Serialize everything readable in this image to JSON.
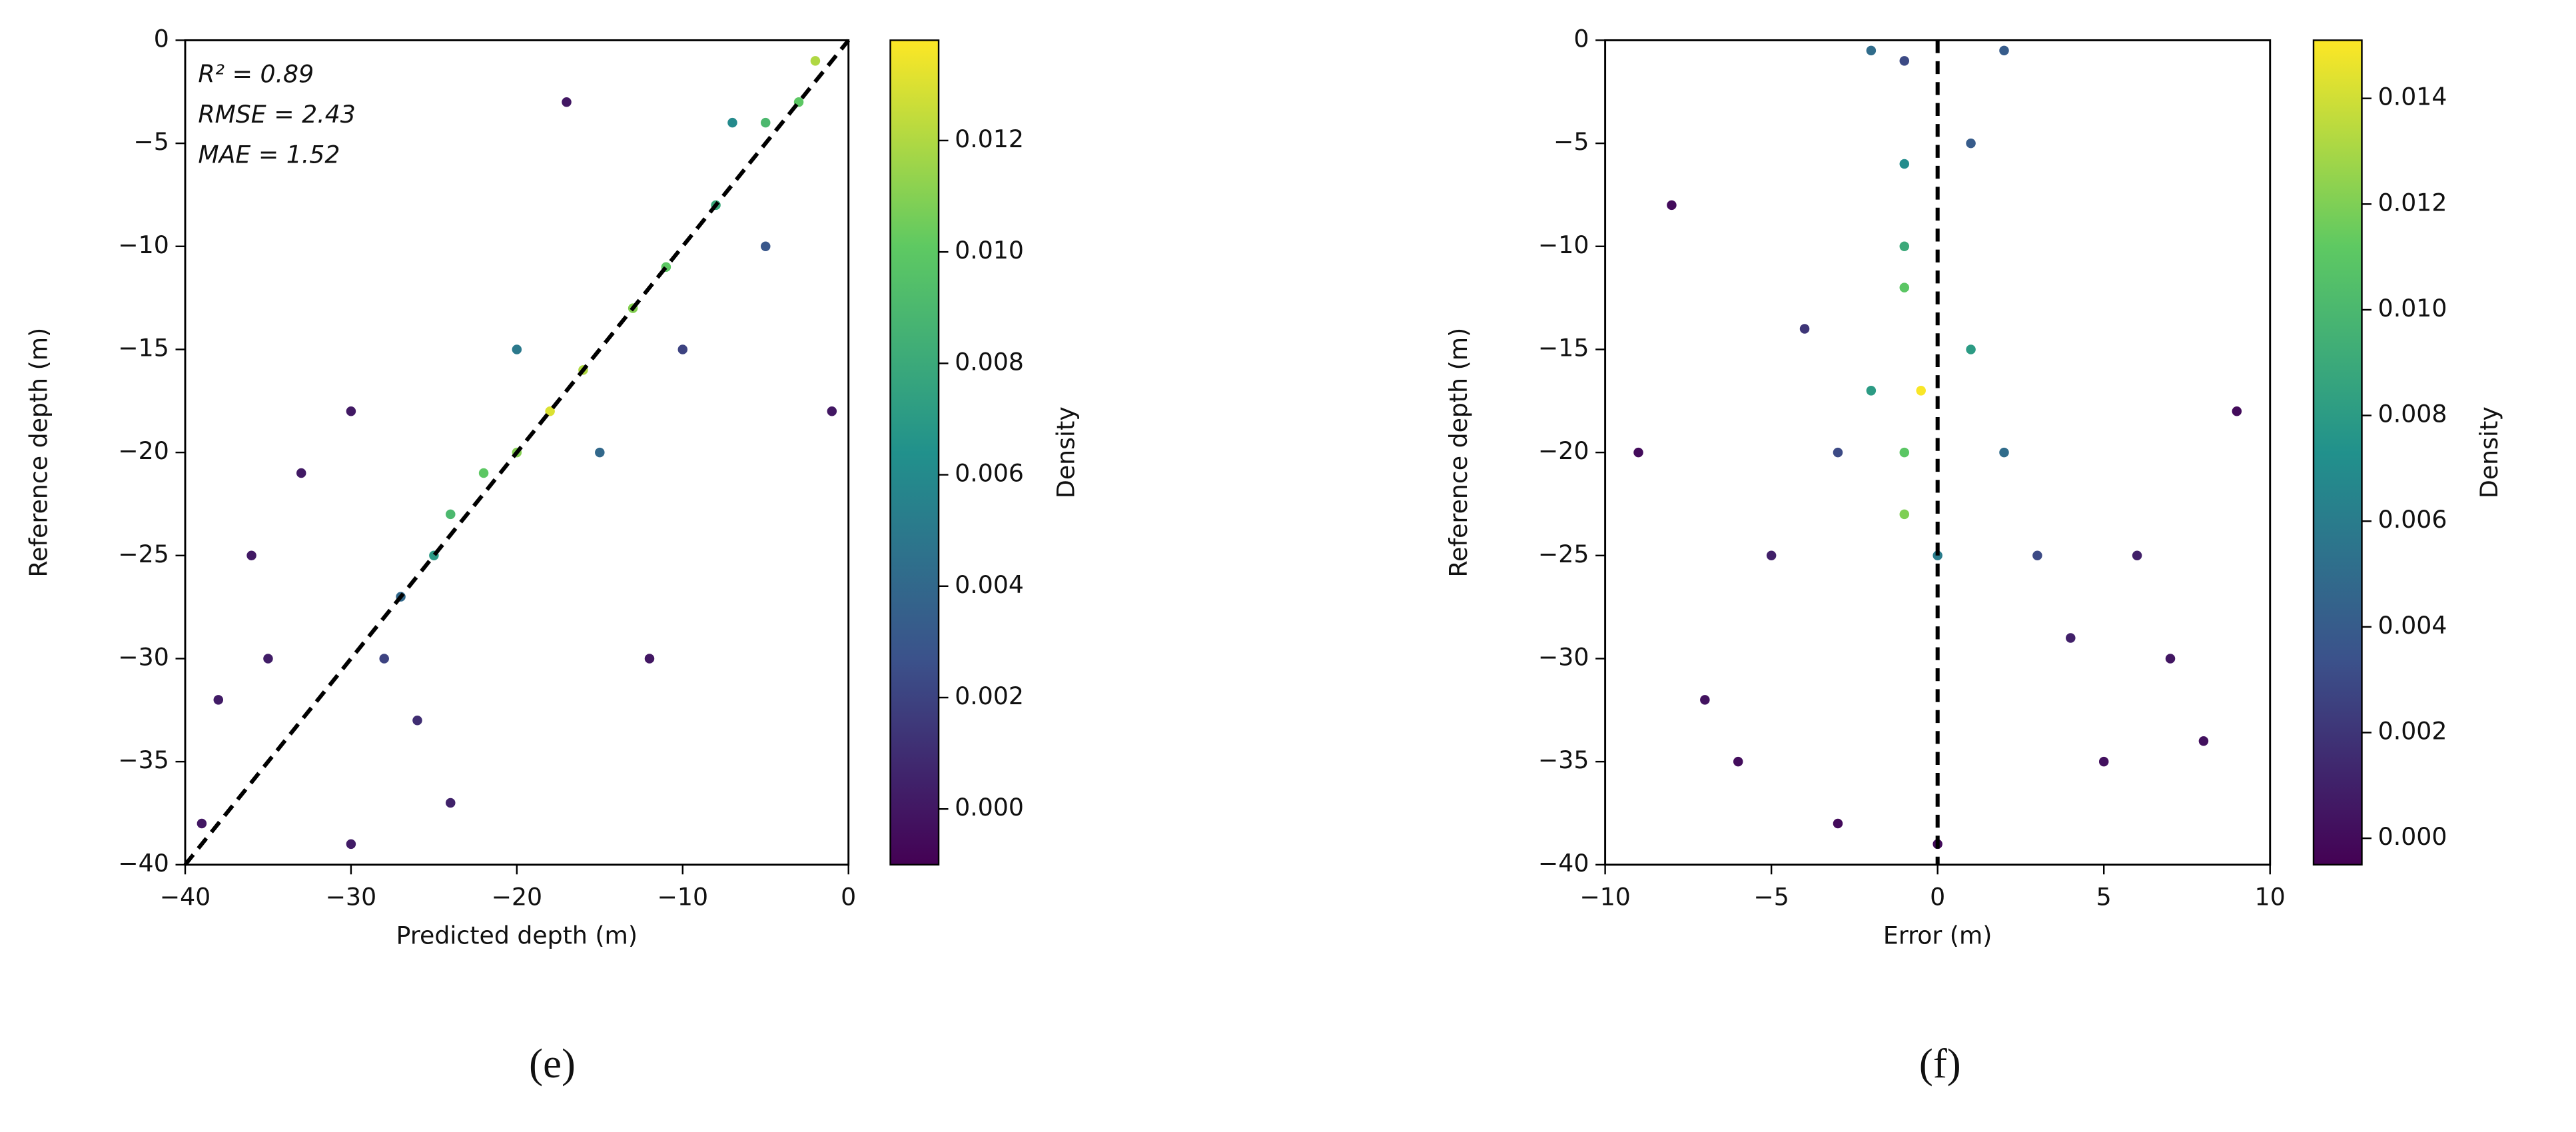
{
  "chart_data": [
    {
      "type": "scatter",
      "panel_label": "(e)",
      "xlabel": "Predicted depth (m)",
      "ylabel": "Reference depth (m)",
      "annotations": [
        "R² = 0.89",
        "RMSE = 2.43",
        "MAE = 1.52"
      ],
      "xlim": [
        -40,
        0
      ],
      "ylim": [
        -40,
        0
      ],
      "xticks": [
        {
          "value": -40,
          "label": "−40"
        },
        {
          "value": -30,
          "label": "−30"
        },
        {
          "value": -20,
          "label": "−20"
        },
        {
          "value": -10,
          "label": "−10"
        },
        0
      ],
      "yticks": [
        {
          "value": -40,
          "label": "−40"
        },
        {
          "value": -35,
          "label": "−35"
        },
        {
          "value": -30,
          "label": "−30"
        },
        {
          "value": -25,
          "label": "−25"
        },
        {
          "value": -20,
          "label": "−20"
        },
        {
          "value": -15,
          "label": "−15"
        },
        {
          "value": -10,
          "label": "−10"
        },
        {
          "value": -5,
          "label": "−5"
        },
        0
      ],
      "x": [
        -2,
        -5,
        -8,
        -11,
        -13,
        -16,
        -18,
        -20,
        -22,
        -24,
        -25,
        -27,
        -28,
        -26,
        -24,
        -38,
        -35,
        -33,
        -30,
        -15,
        -20,
        -10,
        -7,
        -3,
        -1,
        -12,
        -36,
        -39,
        -30,
        -17,
        -5
      ],
      "y": [
        -1,
        -4,
        -8,
        -11,
        -13,
        -16,
        -18,
        -20,
        -21,
        -23,
        -25,
        -27,
        -30,
        -33,
        -37,
        -32,
        -30,
        -21,
        -18,
        -20,
        -15,
        -15,
        -4,
        -3,
        -18,
        -30,
        -25,
        -38,
        -39,
        -3,
        -10
      ],
      "density": [
        0.012,
        0.009,
        0.008,
        0.01,
        0.011,
        0.012,
        0.013,
        0.011,
        0.01,
        0.009,
        0.007,
        0.004,
        0.002,
        0.001,
        0.0005,
        0.0002,
        0.0003,
        0.0001,
        0.0001,
        0.004,
        0.005,
        0.002,
        0.006,
        0.01,
        0,
        0,
        0.0001,
        0,
        0.0002,
        0,
        0.003
      ],
      "reference_line": {
        "x": [
          -40,
          0
        ],
        "y": [
          -40,
          0
        ]
      },
      "colorbar": {
        "label": "Density",
        "clim": [
          -0.001,
          0.0138
        ],
        "ticks": [
          {
            "value": 0,
            "label": "0.000"
          },
          {
            "value": 0.002,
            "label": "0.002"
          },
          {
            "value": 0.004,
            "label": "0.004"
          },
          {
            "value": 0.006,
            "label": "0.006"
          },
          {
            "value": 0.008,
            "label": "0.008"
          },
          {
            "value": 0.01,
            "label": "0.010"
          },
          {
            "value": 0.012,
            "label": "0.012"
          }
        ]
      },
      "colormap": [
        "#440154",
        "#3b528b",
        "#21918c",
        "#5ec962",
        "#fde725"
      ]
    },
    {
      "type": "scatter",
      "panel_label": "(f)",
      "xlabel": "Error (m)",
      "ylabel": "Reference depth (m)",
      "xlim": [
        -10,
        10
      ],
      "ylim": [
        -40,
        0
      ],
      "xticks": [
        {
          "value": -10,
          "label": "−10"
        },
        {
          "value": -5,
          "label": "−5"
        },
        0,
        5,
        10
      ],
      "yticks": [
        {
          "value": -40,
          "label": "−40"
        },
        {
          "value": -35,
          "label": "−35"
        },
        {
          "value": -30,
          "label": "−30"
        },
        {
          "value": -25,
          "label": "−25"
        },
        {
          "value": -20,
          "label": "−20"
        },
        {
          "value": -15,
          "label": "−15"
        },
        {
          "value": -10,
          "label": "−10"
        },
        {
          "value": -5,
          "label": "−5"
        },
        0
      ],
      "x": [
        -1,
        -1,
        -1,
        -1,
        -0.5,
        -1,
        -1,
        0,
        1,
        2,
        3,
        4,
        -2,
        -3,
        -5,
        -7,
        -9,
        -8,
        6,
        8,
        9,
        -6,
        -4,
        1,
        -2,
        2,
        5,
        -3,
        0,
        7
      ],
      "y": [
        -1,
        -6,
        -10,
        -12,
        -17,
        -20,
        -23,
        -25,
        -15,
        -20,
        -25,
        -29,
        -17,
        -20,
        -25,
        -32,
        -20,
        -8,
        -25,
        -34,
        -18,
        -35,
        -14,
        -5,
        -0.5,
        -0.5,
        -35,
        -38,
        -39,
        -30
      ],
      "density": [
        0.003,
        0.007,
        0.009,
        0.011,
        0.015,
        0.011,
        0.012,
        0.006,
        0.008,
        0.005,
        0.003,
        0.001,
        0.008,
        0.003,
        0.001,
        0.0003,
        0,
        0,
        0.001,
        0.0002,
        0,
        0.0001,
        0.002,
        0.004,
        0.005,
        0.004,
        0.0002,
        0,
        0,
        0.0005
      ],
      "reference_line": {
        "x": [
          0,
          0
        ],
        "y": [
          0,
          -40
        ]
      },
      "colorbar": {
        "label": "Density",
        "clim": [
          -0.0005,
          0.0151
        ],
        "ticks": [
          {
            "value": 0,
            "label": "0.000"
          },
          {
            "value": 0.002,
            "label": "0.002"
          },
          {
            "value": 0.004,
            "label": "0.004"
          },
          {
            "value": 0.006,
            "label": "0.006"
          },
          {
            "value": 0.008,
            "label": "0.008"
          },
          {
            "value": 0.01,
            "label": "0.010"
          },
          {
            "value": 0.012,
            "label": "0.012"
          },
          {
            "value": 0.014,
            "label": "0.014"
          }
        ]
      },
      "colormap": [
        "#440154",
        "#3b528b",
        "#21918c",
        "#5ec962",
        "#fde725"
      ]
    }
  ]
}
